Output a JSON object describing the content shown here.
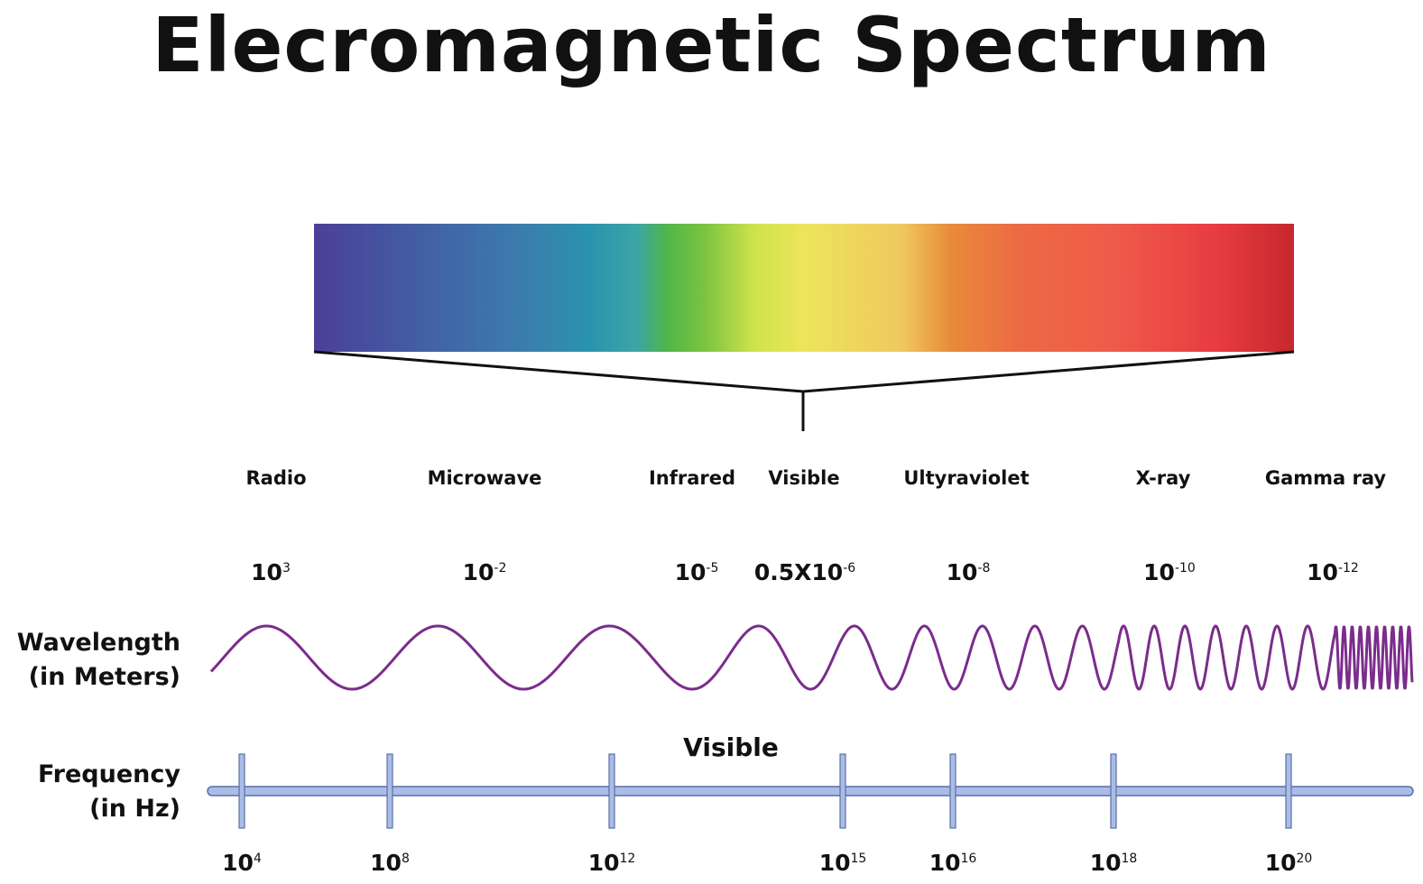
{
  "title": "Elecromagnetic Spectrum",
  "regions": [
    {
      "label": "Radio"
    },
    {
      "label": "Microwave"
    },
    {
      "label": "Infrared"
    },
    {
      "label": "Visible"
    },
    {
      "label": "Ultyraviolet"
    },
    {
      "label": "X-ray"
    },
    {
      "label": "Gamma ray"
    }
  ],
  "wavelengths": [
    {
      "base": "10",
      "exp": "3"
    },
    {
      "base": "10",
      "exp": "-2"
    },
    {
      "base": "10",
      "exp": "-5"
    },
    {
      "base": "0.5X10",
      "exp": "-6"
    },
    {
      "base": "10",
      "exp": "-8"
    },
    {
      "base": "10",
      "exp": "-10"
    },
    {
      "base": "10",
      "exp": "-12"
    }
  ],
  "wavelength_axis": {
    "line1": "Wavelength",
    "line2": "(in Meters)"
  },
  "frequency_axis": {
    "line1": "Frequency",
    "line2": "(in Hz)"
  },
  "visible_marker": "Visible",
  "frequencies": [
    {
      "base": "10",
      "exp": "4"
    },
    {
      "base": "10",
      "exp": "8"
    },
    {
      "base": "10",
      "exp": "12"
    },
    {
      "base": "10",
      "exp": "15"
    },
    {
      "base": "10",
      "exp": "16"
    },
    {
      "base": "10",
      "exp": "18"
    },
    {
      "base": "10",
      "exp": "20"
    }
  ],
  "colors": {
    "wave": "#7b2c8c",
    "axis": "#a9bde6",
    "axis_stroke": "#5a6fa6",
    "bracket": "#111111"
  }
}
